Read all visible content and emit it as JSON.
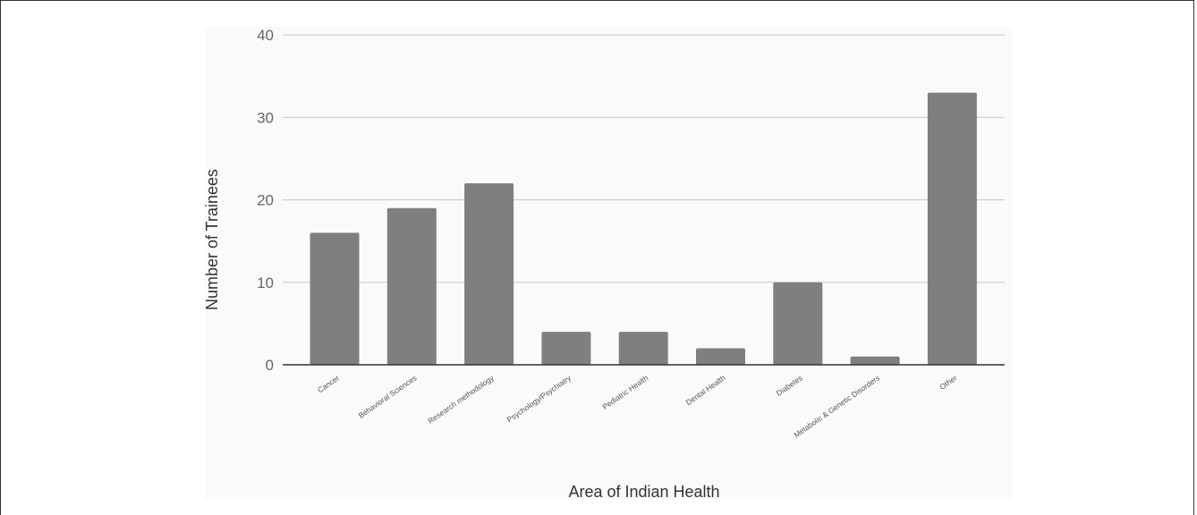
{
  "chart_data": {
    "type": "bar",
    "xlabel": "Area of Indian Health",
    "ylabel": "Number of Trainees",
    "ylim": [
      0,
      40
    ],
    "yticks": [
      0,
      10,
      20,
      30,
      40
    ],
    "grid": true,
    "bar_color": "#7f7f7f",
    "categories": [
      "Cancer",
      "Behavioral Sciences",
      "Research methodology",
      "Psychology/Psychiatry",
      "Pediatric Health",
      "Dental Health",
      "Diabetes",
      "Metabolic & Genetic Disorders",
      "Other"
    ],
    "values": [
      16,
      19,
      22,
      4,
      4,
      2,
      10,
      1,
      33
    ]
  }
}
